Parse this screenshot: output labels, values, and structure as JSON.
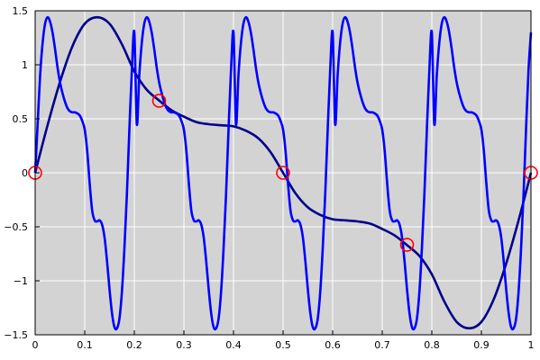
{
  "chart_data": {
    "type": "line",
    "title": "",
    "xlabel": "",
    "ylabel": "",
    "xlim": [
      0,
      1
    ],
    "ylim": [
      -1.5,
      1.5
    ],
    "grid": true,
    "background": "#d3d3d3",
    "x_ticks": [
      0,
      0.1,
      0.2,
      0.3,
      0.4,
      0.5,
      0.6,
      0.7,
      0.8,
      0.9,
      1
    ],
    "x_tick_labels": [
      "0",
      "0.1",
      "0.2",
      "0.3",
      "0.4",
      "0.5",
      "0.6",
      "0.7",
      "0.8",
      "0.9",
      "1"
    ],
    "y_ticks": [
      -1.5,
      -1,
      -0.5,
      0,
      0.5,
      1,
      1.5
    ],
    "y_tick_labels": [
      "−1.5",
      "−1",
      "−0.5",
      "0",
      "0.5",
      "1",
      "1.5"
    ],
    "series": [
      {
        "color": "#00008b",
        "x": [
          0,
          0.025,
          0.05,
          0.075,
          0.1,
          0.125,
          0.15,
          0.175,
          0.2,
          0.225,
          0.25,
          0.275,
          0.3,
          0.325,
          0.35,
          0.375,
          0.4,
          0.425,
          0.45,
          0.475,
          0.5,
          0.525,
          0.55,
          0.575,
          0.6,
          0.625,
          0.65,
          0.675,
          0.7,
          0.725,
          0.75,
          0.775,
          0.8,
          0.825,
          0.85,
          0.875,
          0.9,
          0.925,
          0.95,
          0.975,
          1
        ],
        "y": [
          0,
          0.44,
          0.84,
          1.17,
          1.38,
          1.44,
          1.38,
          1.19,
          0.94,
          0.77,
          0.67,
          0.58,
          0.52,
          0.47,
          0.45,
          0.44,
          0.43,
          0.39,
          0.32,
          0.19,
          0,
          -0.19,
          -0.32,
          -0.39,
          -0.43,
          -0.44,
          -0.45,
          -0.47,
          -0.52,
          -0.58,
          -0.67,
          -0.77,
          -0.94,
          -1.19,
          -1.38,
          -1.44,
          -1.38,
          -1.17,
          -0.84,
          -0.44,
          0
        ]
      },
      {
        "color": "#0000ff",
        "x": [
          0,
          0.005,
          0.01,
          0.015,
          0.02,
          0.025,
          0.03,
          0.035,
          0.04,
          0.045,
          0.05,
          0.055,
          0.06,
          0.065,
          0.07,
          0.075,
          0.08,
          0.085,
          0.09,
          0.095,
          0.1,
          0.105,
          0.11,
          0.115,
          0.12,
          0.125,
          0.13,
          0.135,
          0.14,
          0.145,
          0.15,
          0.155,
          0.16,
          0.165,
          0.17,
          0.175,
          0.18,
          0.185,
          0.19,
          0.195,
          0.2
        ],
        "y": [
          0,
          0.45,
          0.9,
          1.2,
          1.38,
          1.44,
          1.4,
          1.3,
          1.15,
          0.98,
          0.84,
          0.74,
          0.66,
          0.6,
          0.57,
          0.56,
          0.56,
          0.55,
          0.53,
          0.48,
          0.4,
          0.2,
          -0.1,
          -0.35,
          -0.44,
          -0.45,
          -0.44,
          -0.48,
          -0.6,
          -0.82,
          -1.08,
          -1.3,
          -1.43,
          -1.44,
          -1.35,
          -1.1,
          -0.7,
          -0.2,
          0.4,
          0.95,
          1.3
        ],
        "period": 0.2
      }
    ],
    "markers": {
      "color": "#ff0000",
      "shape": "open-circle",
      "x": [
        0,
        0.25,
        0.5,
        0.75,
        1
      ],
      "y": [
        0,
        0.667,
        0,
        -0.667,
        0
      ]
    }
  }
}
